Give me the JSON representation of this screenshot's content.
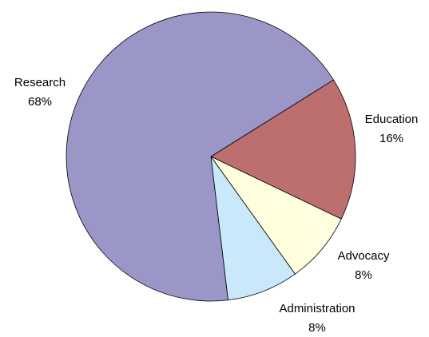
{
  "chart_data": {
    "type": "pie",
    "title": "",
    "slices": [
      {
        "label": "Research",
        "value": 68,
        "value_label": "68%",
        "color": "#9a97c8"
      },
      {
        "label": "Education",
        "value": 16,
        "value_label": "16%",
        "color": "#bd6e6f"
      },
      {
        "label": "Advocacy",
        "value": 8,
        "value_label": "8%",
        "color": "#ffffdf"
      },
      {
        "label": "Administration",
        "value": 8,
        "value_label": "8%",
        "color": "#c9e8f9"
      }
    ],
    "legend": "none",
    "labels": "outside slices with category name and percent"
  }
}
